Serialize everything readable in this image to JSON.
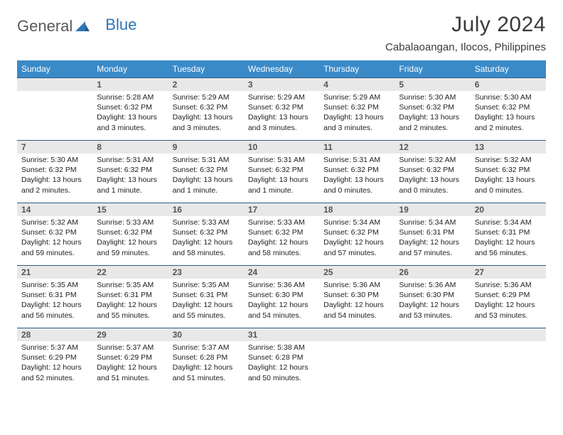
{
  "logo": {
    "text1": "General",
    "text2": "Blue"
  },
  "title": "July 2024",
  "location": "Cabalaoangan, Ilocos, Philippines",
  "colors": {
    "header_bg": "#3a8ac8",
    "header_text": "#ffffff",
    "daynum_bg": "#e8e8e8",
    "row_border": "#2e5a84",
    "logo_gray": "#5a5a5a",
    "logo_blue": "#2e75b6"
  },
  "weekdays": [
    "Sunday",
    "Monday",
    "Tuesday",
    "Wednesday",
    "Thursday",
    "Friday",
    "Saturday"
  ],
  "weeks": [
    [
      {
        "num": "",
        "lines": []
      },
      {
        "num": "1",
        "lines": [
          "Sunrise: 5:28 AM",
          "Sunset: 6:32 PM",
          "Daylight: 13 hours",
          "and 3 minutes."
        ]
      },
      {
        "num": "2",
        "lines": [
          "Sunrise: 5:29 AM",
          "Sunset: 6:32 PM",
          "Daylight: 13 hours",
          "and 3 minutes."
        ]
      },
      {
        "num": "3",
        "lines": [
          "Sunrise: 5:29 AM",
          "Sunset: 6:32 PM",
          "Daylight: 13 hours",
          "and 3 minutes."
        ]
      },
      {
        "num": "4",
        "lines": [
          "Sunrise: 5:29 AM",
          "Sunset: 6:32 PM",
          "Daylight: 13 hours",
          "and 3 minutes."
        ]
      },
      {
        "num": "5",
        "lines": [
          "Sunrise: 5:30 AM",
          "Sunset: 6:32 PM",
          "Daylight: 13 hours",
          "and 2 minutes."
        ]
      },
      {
        "num": "6",
        "lines": [
          "Sunrise: 5:30 AM",
          "Sunset: 6:32 PM",
          "Daylight: 13 hours",
          "and 2 minutes."
        ]
      }
    ],
    [
      {
        "num": "7",
        "lines": [
          "Sunrise: 5:30 AM",
          "Sunset: 6:32 PM",
          "Daylight: 13 hours",
          "and 2 minutes."
        ]
      },
      {
        "num": "8",
        "lines": [
          "Sunrise: 5:31 AM",
          "Sunset: 6:32 PM",
          "Daylight: 13 hours",
          "and 1 minute."
        ]
      },
      {
        "num": "9",
        "lines": [
          "Sunrise: 5:31 AM",
          "Sunset: 6:32 PM",
          "Daylight: 13 hours",
          "and 1 minute."
        ]
      },
      {
        "num": "10",
        "lines": [
          "Sunrise: 5:31 AM",
          "Sunset: 6:32 PM",
          "Daylight: 13 hours",
          "and 1 minute."
        ]
      },
      {
        "num": "11",
        "lines": [
          "Sunrise: 5:31 AM",
          "Sunset: 6:32 PM",
          "Daylight: 13 hours",
          "and 0 minutes."
        ]
      },
      {
        "num": "12",
        "lines": [
          "Sunrise: 5:32 AM",
          "Sunset: 6:32 PM",
          "Daylight: 13 hours",
          "and 0 minutes."
        ]
      },
      {
        "num": "13",
        "lines": [
          "Sunrise: 5:32 AM",
          "Sunset: 6:32 PM",
          "Daylight: 13 hours",
          "and 0 minutes."
        ]
      }
    ],
    [
      {
        "num": "14",
        "lines": [
          "Sunrise: 5:32 AM",
          "Sunset: 6:32 PM",
          "Daylight: 12 hours",
          "and 59 minutes."
        ]
      },
      {
        "num": "15",
        "lines": [
          "Sunrise: 5:33 AM",
          "Sunset: 6:32 PM",
          "Daylight: 12 hours",
          "and 59 minutes."
        ]
      },
      {
        "num": "16",
        "lines": [
          "Sunrise: 5:33 AM",
          "Sunset: 6:32 PM",
          "Daylight: 12 hours",
          "and 58 minutes."
        ]
      },
      {
        "num": "17",
        "lines": [
          "Sunrise: 5:33 AM",
          "Sunset: 6:32 PM",
          "Daylight: 12 hours",
          "and 58 minutes."
        ]
      },
      {
        "num": "18",
        "lines": [
          "Sunrise: 5:34 AM",
          "Sunset: 6:32 PM",
          "Daylight: 12 hours",
          "and 57 minutes."
        ]
      },
      {
        "num": "19",
        "lines": [
          "Sunrise: 5:34 AM",
          "Sunset: 6:31 PM",
          "Daylight: 12 hours",
          "and 57 minutes."
        ]
      },
      {
        "num": "20",
        "lines": [
          "Sunrise: 5:34 AM",
          "Sunset: 6:31 PM",
          "Daylight: 12 hours",
          "and 56 minutes."
        ]
      }
    ],
    [
      {
        "num": "21",
        "lines": [
          "Sunrise: 5:35 AM",
          "Sunset: 6:31 PM",
          "Daylight: 12 hours",
          "and 56 minutes."
        ]
      },
      {
        "num": "22",
        "lines": [
          "Sunrise: 5:35 AM",
          "Sunset: 6:31 PM",
          "Daylight: 12 hours",
          "and 55 minutes."
        ]
      },
      {
        "num": "23",
        "lines": [
          "Sunrise: 5:35 AM",
          "Sunset: 6:31 PM",
          "Daylight: 12 hours",
          "and 55 minutes."
        ]
      },
      {
        "num": "24",
        "lines": [
          "Sunrise: 5:36 AM",
          "Sunset: 6:30 PM",
          "Daylight: 12 hours",
          "and 54 minutes."
        ]
      },
      {
        "num": "25",
        "lines": [
          "Sunrise: 5:36 AM",
          "Sunset: 6:30 PM",
          "Daylight: 12 hours",
          "and 54 minutes."
        ]
      },
      {
        "num": "26",
        "lines": [
          "Sunrise: 5:36 AM",
          "Sunset: 6:30 PM",
          "Daylight: 12 hours",
          "and 53 minutes."
        ]
      },
      {
        "num": "27",
        "lines": [
          "Sunrise: 5:36 AM",
          "Sunset: 6:29 PM",
          "Daylight: 12 hours",
          "and 53 minutes."
        ]
      }
    ],
    [
      {
        "num": "28",
        "lines": [
          "Sunrise: 5:37 AM",
          "Sunset: 6:29 PM",
          "Daylight: 12 hours",
          "and 52 minutes."
        ]
      },
      {
        "num": "29",
        "lines": [
          "Sunrise: 5:37 AM",
          "Sunset: 6:29 PM",
          "Daylight: 12 hours",
          "and 51 minutes."
        ]
      },
      {
        "num": "30",
        "lines": [
          "Sunrise: 5:37 AM",
          "Sunset: 6:28 PM",
          "Daylight: 12 hours",
          "and 51 minutes."
        ]
      },
      {
        "num": "31",
        "lines": [
          "Sunrise: 5:38 AM",
          "Sunset: 6:28 PM",
          "Daylight: 12 hours",
          "and 50 minutes."
        ]
      },
      {
        "num": "",
        "lines": []
      },
      {
        "num": "",
        "lines": []
      },
      {
        "num": "",
        "lines": []
      }
    ]
  ]
}
